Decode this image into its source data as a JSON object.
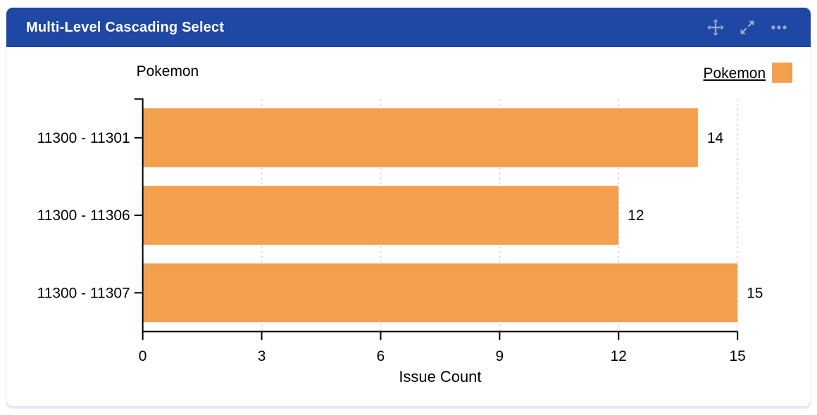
{
  "header": {
    "title": "Multi-Level Cascading Select",
    "icons": [
      {
        "name": "move-icon"
      },
      {
        "name": "expand-icon"
      },
      {
        "name": "ellipsis-icon"
      }
    ]
  },
  "chart_data": {
    "type": "bar",
    "orientation": "horizontal",
    "axis_title": "Pokemon",
    "categories": [
      "11300 - 11301",
      "11300 - 11306",
      "11300 - 11307"
    ],
    "series": [
      {
        "name": "Pokemon",
        "values": [
          14,
          12,
          15
        ]
      }
    ],
    "value_labels": [
      14,
      12,
      15
    ],
    "xlabel": "Issue Count",
    "xlim": [
      0,
      15
    ],
    "xticks": [
      0,
      3,
      6,
      9,
      12,
      15
    ],
    "grid": "dashed-vertical",
    "legend": {
      "label": "Pokemon",
      "position": "top-right",
      "underlined": true
    }
  },
  "colors": {
    "header_bg": "#1e48a3",
    "header_icon": "#93a6d4",
    "bar": "#f2a04d",
    "grid": "#dcdcdc",
    "axis": "#000000",
    "text": "#000000"
  }
}
